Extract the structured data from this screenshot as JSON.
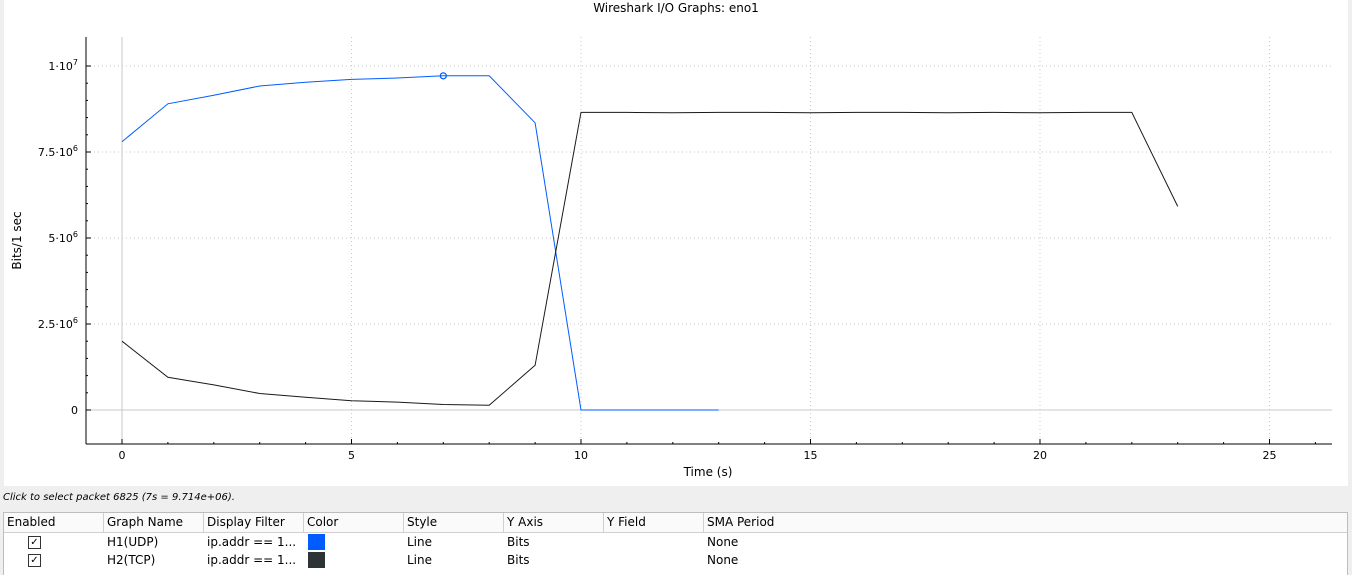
{
  "status": "Click to select packet 6825 (7s = 9.714e+06).",
  "table": {
    "headers": [
      "Enabled",
      "Graph Name",
      "Display Filter",
      "Color",
      "Style",
      "Y Axis",
      "Y Field",
      "SMA Period"
    ],
    "rows": [
      {
        "enabled": "✓",
        "name": "H1(UDP)",
        "filter": "ip.addr == 1...",
        "color": "#005cff",
        "style": "Line",
        "yaxis": "Bits",
        "yfield": "",
        "sma": "None"
      },
      {
        "enabled": "✓",
        "name": "H2(TCP)",
        "filter": "ip.addr == 1...",
        "color": "#2e3436",
        "style": "Line",
        "yaxis": "Bits",
        "yfield": "",
        "sma": "None"
      }
    ]
  },
  "chart_data": {
    "type": "line",
    "title": "Wireshark I/O Graphs: eno1",
    "xlabel": "Time (s)",
    "ylabel": "Bits/1 sec",
    "xlim": [
      -0.8,
      26.3
    ],
    "ylim": [
      -500000,
      10800000
    ],
    "xticks": [
      0,
      5,
      10,
      15,
      20,
      25
    ],
    "yticks": [
      {
        "value": 0,
        "base": "0",
        "exp": ""
      },
      {
        "value": 2500000,
        "base": "2.5·10",
        "exp": "6"
      },
      {
        "value": 5000000,
        "base": "5·10",
        "exp": "6"
      },
      {
        "value": 7500000,
        "base": "7.5·10",
        "exp": "6"
      },
      {
        "value": 10000000,
        "base": "1·10",
        "exp": "7"
      }
    ],
    "grid": true,
    "series": [
      {
        "name": "H1(UDP)",
        "color": "#005cff",
        "x": [
          0,
          1,
          2,
          3,
          4,
          5,
          6,
          7,
          8,
          9,
          10,
          11,
          12,
          13
        ],
        "values": [
          7800000,
          8900000,
          9150000,
          9420000,
          9530000,
          9610000,
          9650000,
          9714000,
          9714000,
          8350000,
          0,
          0,
          0,
          0
        ]
      },
      {
        "name": "H2(TCP)",
        "color": "#1a1a1a",
        "x": [
          0,
          1,
          2,
          3,
          4,
          5,
          6,
          7,
          8,
          9,
          10,
          11,
          12,
          13,
          14,
          15,
          16,
          17,
          18,
          19,
          20,
          21,
          22,
          23
        ],
        "values": [
          2000000,
          950000,
          730000,
          480000,
          370000,
          270000,
          230000,
          160000,
          140000,
          1300000,
          8650000,
          8650000,
          8640000,
          8650000,
          8650000,
          8640000,
          8650000,
          8650000,
          8640000,
          8650000,
          8640000,
          8650000,
          8650000,
          5920000
        ]
      }
    ],
    "selected_point": {
      "series": "H1(UDP)",
      "x": 7,
      "y": 9714000
    }
  }
}
